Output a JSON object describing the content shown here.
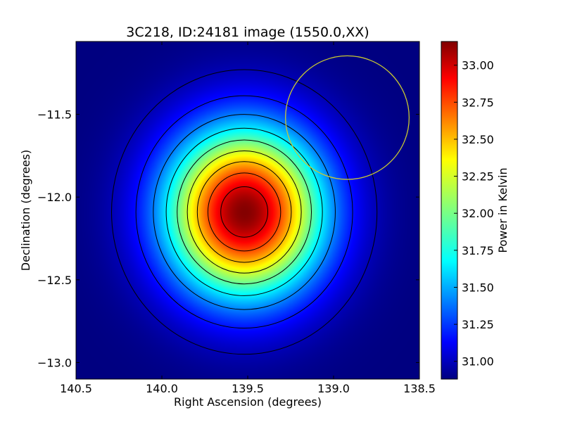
{
  "chart_data": {
    "type": "heatmap",
    "title": "3C218, ID:24181 image (1550.0,XX)",
    "xlabel": "Right Ascension (degrees)",
    "ylabel": "Declination (degrees)",
    "xlim": [
      140.5,
      138.5
    ],
    "ylim": [
      -13.1,
      -11.06
    ],
    "x_ticks": [
      140.5,
      140.0,
      139.5,
      139.0,
      138.5
    ],
    "x_tick_labels": [
      "140.5",
      "140.0",
      "139.5",
      "139.0",
      "138.5"
    ],
    "y_ticks": [
      -11.5,
      -12.0,
      -12.5,
      -13.0
    ],
    "y_tick_labels": [
      "−11.5",
      "−12.0",
      "−12.5",
      "−13.0"
    ],
    "colormap": "jet",
    "source_peak": {
      "ra": 139.52,
      "dec": -12.09,
      "value": 33.15
    },
    "background_value": 30.88,
    "contour_levels": [
      31.0,
      31.2,
      31.45,
      31.7,
      31.95,
      32.2,
      32.45,
      32.7,
      32.95
    ],
    "marker_circle": {
      "ra": 138.92,
      "dec": -11.52,
      "radius_deg": 0.36,
      "color": "#c8c832"
    },
    "colorbar": {
      "label": "Power in Kelvin",
      "range": [
        30.88,
        33.16
      ],
      "ticks": [
        31.0,
        31.25,
        31.5,
        31.75,
        32.0,
        32.25,
        32.5,
        32.75,
        33.0
      ],
      "tick_labels": [
        "31.00",
        "31.25",
        "31.50",
        "31.75",
        "32.00",
        "32.25",
        "32.50",
        "32.75",
        "33.00"
      ]
    }
  }
}
